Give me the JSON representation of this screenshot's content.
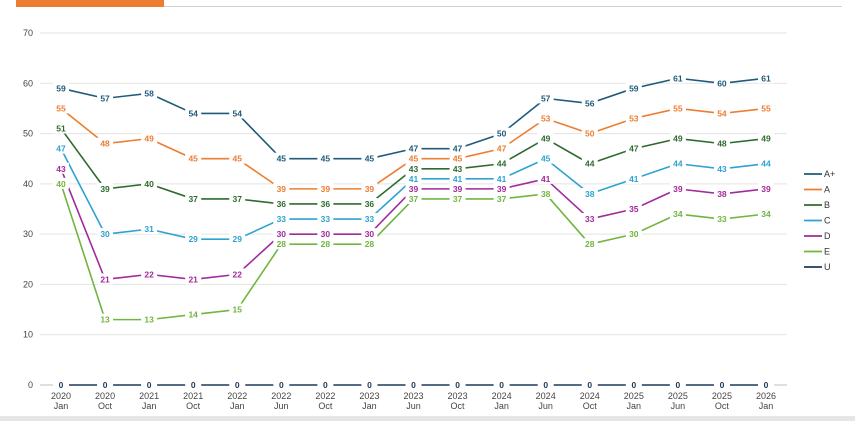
{
  "chart_data": {
    "type": "line",
    "title": "",
    "xlabel": "",
    "ylabel": "",
    "ylim": [
      0,
      70
    ],
    "yticks": [
      0,
      10,
      20,
      30,
      40,
      50,
      60,
      70
    ],
    "grid": true,
    "legend_position": "right",
    "categories": [
      [
        "2020",
        "Jan"
      ],
      [
        "2020",
        "Oct"
      ],
      [
        "2021",
        "Jan"
      ],
      [
        "2021",
        "Oct"
      ],
      [
        "2022",
        "Jan"
      ],
      [
        "2022",
        "Jun"
      ],
      [
        "2022",
        "Oct"
      ],
      [
        "2023",
        "Jan"
      ],
      [
        "2023",
        "Jun"
      ],
      [
        "2023",
        "Oct"
      ],
      [
        "2024",
        "Jan"
      ],
      [
        "2024",
        "Jun"
      ],
      [
        "2024",
        "Oct"
      ],
      [
        "2025",
        "Jan"
      ],
      [
        "2025",
        "Jun"
      ],
      [
        "2025",
        "Oct"
      ],
      [
        "2026",
        "Jan"
      ]
    ],
    "series": [
      {
        "name": "A+",
        "color": "#1F5A7A",
        "values": [
          59,
          57,
          58,
          54,
          54,
          45,
          45,
          45,
          47,
          47,
          50,
          57,
          56,
          59,
          61,
          60,
          61
        ]
      },
      {
        "name": "A",
        "color": "#ED7D31",
        "values": [
          55,
          48,
          49,
          45,
          45,
          39,
          39,
          39,
          45,
          45,
          47,
          53,
          50,
          53,
          55,
          54,
          55
        ]
      },
      {
        "name": "B",
        "color": "#2E6B2E",
        "values": [
          51,
          39,
          40,
          37,
          37,
          36,
          36,
          36,
          43,
          43,
          44,
          49,
          44,
          47,
          49,
          48,
          49
        ]
      },
      {
        "name": "C",
        "color": "#2EA3D1",
        "values": [
          47,
          30,
          31,
          29,
          29,
          33,
          33,
          33,
          41,
          41,
          41,
          45,
          38,
          41,
          44,
          43,
          44
        ]
      },
      {
        "name": "D",
        "color": "#A12A9C",
        "values": [
          43,
          21,
          22,
          21,
          22,
          30,
          30,
          30,
          39,
          39,
          39,
          41,
          33,
          35,
          39,
          38,
          39
        ]
      },
      {
        "name": "E",
        "color": "#70B63E",
        "values": [
          40,
          13,
          13,
          14,
          15,
          28,
          28,
          28,
          37,
          37,
          37,
          38,
          28,
          30,
          34,
          33,
          34
        ]
      },
      {
        "name": "U",
        "color": "#1B3A5C",
        "values": [
          0,
          0,
          0,
          0,
          0,
          0,
          0,
          0,
          0,
          0,
          0,
          0,
          0,
          0,
          0,
          0,
          0
        ]
      }
    ]
  }
}
